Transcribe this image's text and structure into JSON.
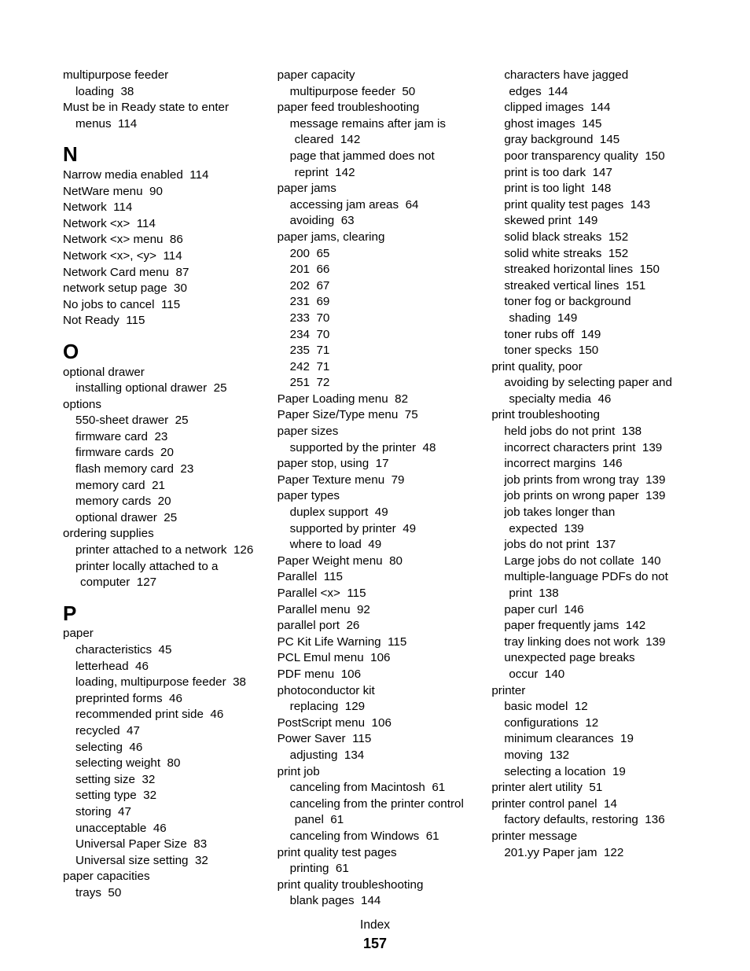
{
  "footer_label": "Index",
  "page_number": "157",
  "entries": [
    {
      "level": 0,
      "text": "multipurpose feeder"
    },
    {
      "level": 1,
      "text": "loading",
      "page": "38"
    },
    {
      "level": 0,
      "text": "Must be in Ready state to enter menus",
      "page": "114",
      "wrap": true
    },
    {
      "heading": "N"
    },
    {
      "level": 0,
      "text": "Narrow media enabled",
      "page": "114"
    },
    {
      "level": 0,
      "text": "NetWare menu",
      "page": "90"
    },
    {
      "level": 0,
      "text": "Network",
      "page": "114"
    },
    {
      "level": 0,
      "text": "Network <x>",
      "page": "114"
    },
    {
      "level": 0,
      "text": "Network <x> menu",
      "page": "86"
    },
    {
      "level": 0,
      "text": "Network <x>, <y>",
      "page": "114"
    },
    {
      "level": 0,
      "text": "Network Card menu",
      "page": "87"
    },
    {
      "level": 0,
      "text": "network setup page",
      "page": "30"
    },
    {
      "level": 0,
      "text": "No jobs to cancel",
      "page": "115"
    },
    {
      "level": 0,
      "text": "Not Ready",
      "page": "115"
    },
    {
      "heading": "O"
    },
    {
      "level": 0,
      "text": "optional drawer"
    },
    {
      "level": 1,
      "text": "installing optional drawer",
      "page": "25"
    },
    {
      "level": 0,
      "text": "options"
    },
    {
      "level": 1,
      "text": "550-sheet drawer",
      "page": "25"
    },
    {
      "level": 1,
      "text": "firmware card",
      "page": "23"
    },
    {
      "level": 1,
      "text": "firmware cards",
      "page": "20"
    },
    {
      "level": 1,
      "text": "flash memory card",
      "page": "23"
    },
    {
      "level": 1,
      "text": "memory card",
      "page": "21"
    },
    {
      "level": 1,
      "text": "memory cards",
      "page": "20"
    },
    {
      "level": 1,
      "text": "optional drawer",
      "page": "25"
    },
    {
      "level": 0,
      "text": "ordering supplies"
    },
    {
      "level": 1,
      "text": "printer attached to a network",
      "page": "126",
      "wrap": true
    },
    {
      "level": 1,
      "text": "printer locally attached to a computer",
      "page": "127",
      "wrap": true
    },
    {
      "heading": "P"
    },
    {
      "level": 0,
      "text": "paper"
    },
    {
      "level": 1,
      "text": "characteristics",
      "page": "45"
    },
    {
      "level": 1,
      "text": "letterhead",
      "page": "46"
    },
    {
      "level": 1,
      "text": "loading, multipurpose feeder",
      "page": "38"
    },
    {
      "level": 1,
      "text": "preprinted forms",
      "page": "46"
    },
    {
      "level": 1,
      "text": "recommended print side",
      "page": "46"
    },
    {
      "level": 1,
      "text": "recycled",
      "page": "47"
    },
    {
      "level": 1,
      "text": "selecting",
      "page": "46"
    },
    {
      "level": 1,
      "text": "selecting weight",
      "page": "80"
    },
    {
      "level": 1,
      "text": "setting size",
      "page": "32"
    },
    {
      "level": 1,
      "text": "setting type",
      "page": "32"
    },
    {
      "level": 1,
      "text": "storing",
      "page": "47"
    },
    {
      "level": 1,
      "text": "unacceptable",
      "page": "46"
    },
    {
      "level": 1,
      "text": "Universal Paper Size",
      "page": "83"
    },
    {
      "level": 1,
      "text": "Universal size setting",
      "page": "32"
    },
    {
      "level": 0,
      "text": "paper capacities"
    },
    {
      "level": 1,
      "text": "trays",
      "page": "50"
    },
    {
      "level": 0,
      "text": "paper capacity"
    },
    {
      "level": 1,
      "text": "multipurpose feeder",
      "page": "50"
    },
    {
      "level": 0,
      "text": "paper feed troubleshooting"
    },
    {
      "level": 1,
      "text": "message remains after jam is cleared",
      "page": "142",
      "wrap": true
    },
    {
      "level": 1,
      "text": "page that jammed does not reprint",
      "page": "142",
      "wrap": true
    },
    {
      "level": 0,
      "text": "paper jams"
    },
    {
      "level": 1,
      "text": "accessing jam areas",
      "page": "64"
    },
    {
      "level": 1,
      "text": "avoiding",
      "page": "63"
    },
    {
      "level": 0,
      "text": "paper jams, clearing"
    },
    {
      "level": 1,
      "text": "200",
      "page": "65"
    },
    {
      "level": 1,
      "text": "201",
      "page": "66"
    },
    {
      "level": 1,
      "text": "202",
      "page": "67"
    },
    {
      "level": 1,
      "text": "231",
      "page": "69"
    },
    {
      "level": 1,
      "text": "233",
      "page": "70"
    },
    {
      "level": 1,
      "text": "234",
      "page": "70"
    },
    {
      "level": 1,
      "text": "235",
      "page": "71"
    },
    {
      "level": 1,
      "text": "242",
      "page": "71"
    },
    {
      "level": 1,
      "text": "251",
      "page": "72"
    },
    {
      "level": 0,
      "text": "Paper Loading menu",
      "page": "82"
    },
    {
      "level": 0,
      "text": "Paper Size/Type menu",
      "page": "75"
    },
    {
      "level": 0,
      "text": "paper sizes"
    },
    {
      "level": 1,
      "text": "supported by the printer",
      "page": "48"
    },
    {
      "level": 0,
      "text": "paper stop, using",
      "page": "17"
    },
    {
      "level": 0,
      "text": "Paper Texture menu",
      "page": "79"
    },
    {
      "level": 0,
      "text": "paper types"
    },
    {
      "level": 1,
      "text": "duplex support",
      "page": "49"
    },
    {
      "level": 1,
      "text": "supported by printer",
      "page": "49"
    },
    {
      "level": 1,
      "text": "where to load",
      "page": "49"
    },
    {
      "level": 0,
      "text": "Paper Weight menu",
      "page": "80"
    },
    {
      "level": 0,
      "text": "Parallel",
      "page": "115"
    },
    {
      "level": 0,
      "text": "Parallel <x>",
      "page": "115"
    },
    {
      "level": 0,
      "text": "Parallel menu",
      "page": "92"
    },
    {
      "level": 0,
      "text": "parallel port",
      "page": "26"
    },
    {
      "level": 0,
      "text": "PC Kit Life Warning",
      "page": "115"
    },
    {
      "level": 0,
      "text": "PCL Emul menu",
      "page": "106"
    },
    {
      "level": 0,
      "text": "PDF menu",
      "page": "106"
    },
    {
      "level": 0,
      "text": "photoconductor kit"
    },
    {
      "level": 1,
      "text": "replacing",
      "page": "129"
    },
    {
      "level": 0,
      "text": "PostScript menu",
      "page": "106"
    },
    {
      "level": 0,
      "text": "Power Saver",
      "page": "115"
    },
    {
      "level": 1,
      "text": "adjusting",
      "page": "134"
    },
    {
      "level": 0,
      "text": "print job"
    },
    {
      "level": 1,
      "text": "canceling from Macintosh",
      "page": "61"
    },
    {
      "level": 1,
      "text": "canceling from the printer control panel",
      "page": "61",
      "wrap": true
    },
    {
      "level": 1,
      "text": "canceling from Windows",
      "page": "61"
    },
    {
      "level": 0,
      "text": "print quality test pages"
    },
    {
      "level": 1,
      "text": "printing",
      "page": "61"
    },
    {
      "level": 0,
      "text": "print quality troubleshooting"
    },
    {
      "level": 1,
      "text": "blank pages",
      "page": "144"
    },
    {
      "level": 1,
      "text": "characters have jagged edges",
      "page": "144",
      "wrap": true
    },
    {
      "level": 1,
      "text": "clipped images",
      "page": "144"
    },
    {
      "level": 1,
      "text": "ghost images",
      "page": "145"
    },
    {
      "level": 1,
      "text": "gray background",
      "page": "145"
    },
    {
      "level": 1,
      "text": "poor transparency quality",
      "page": "150"
    },
    {
      "level": 1,
      "text": "print is too dark",
      "page": "147"
    },
    {
      "level": 1,
      "text": "print is too light",
      "page": "148"
    },
    {
      "level": 1,
      "text": "print quality test pages",
      "page": "143"
    },
    {
      "level": 1,
      "text": "skewed print",
      "page": "149"
    },
    {
      "level": 1,
      "text": "solid black streaks",
      "page": "152"
    },
    {
      "level": 1,
      "text": "solid white streaks",
      "page": "152"
    },
    {
      "level": 1,
      "text": "streaked horizontal lines",
      "page": "150"
    },
    {
      "level": 1,
      "text": "streaked vertical lines",
      "page": "151"
    },
    {
      "level": 1,
      "text": "toner fog or background shading",
      "page": "149",
      "wrap": true
    },
    {
      "level": 1,
      "text": "toner rubs off",
      "page": "149"
    },
    {
      "level": 1,
      "text": "toner specks",
      "page": "150"
    },
    {
      "level": 0,
      "text": "print quality, poor"
    },
    {
      "level": 1,
      "text": "avoiding by selecting paper and specialty media",
      "page": "46",
      "wrap": true
    },
    {
      "level": 0,
      "text": "print troubleshooting"
    },
    {
      "level": 1,
      "text": "held jobs do not print",
      "page": "138"
    },
    {
      "level": 1,
      "text": "incorrect characters print",
      "page": "139"
    },
    {
      "level": 1,
      "text": "incorrect margins",
      "page": "146"
    },
    {
      "level": 1,
      "text": "job prints from wrong tray",
      "page": "139"
    },
    {
      "level": 1,
      "text": "job prints on wrong paper",
      "page": "139"
    },
    {
      "level": 1,
      "text": "job takes longer than expected",
      "page": "139",
      "wrap": true
    },
    {
      "level": 1,
      "text": "jobs do not print",
      "page": "137"
    },
    {
      "level": 1,
      "text": "Large jobs do not collate",
      "page": "140"
    },
    {
      "level": 1,
      "text": "multiple-language PDFs do not print",
      "page": "138",
      "wrap": true
    },
    {
      "level": 1,
      "text": "paper curl",
      "page": "146"
    },
    {
      "level": 1,
      "text": "paper frequently jams",
      "page": "142"
    },
    {
      "level": 1,
      "text": "tray linking does not work",
      "page": "139"
    },
    {
      "level": 1,
      "text": "unexpected page breaks occur",
      "page": "140",
      "wrap": true
    },
    {
      "level": 0,
      "text": "printer"
    },
    {
      "level": 1,
      "text": "basic model",
      "page": "12"
    },
    {
      "level": 1,
      "text": "configurations",
      "page": "12"
    },
    {
      "level": 1,
      "text": "minimum clearances",
      "page": "19"
    },
    {
      "level": 1,
      "text": "moving",
      "page": "132"
    },
    {
      "level": 1,
      "text": "selecting a location",
      "page": "19"
    },
    {
      "level": 0,
      "text": "printer alert utility",
      "page": "51"
    },
    {
      "level": 0,
      "text": "printer control panel",
      "page": "14"
    },
    {
      "level": 1,
      "text": "factory defaults, restoring",
      "page": "136"
    },
    {
      "level": 0,
      "text": "printer message"
    },
    {
      "level": 1,
      "text": "201.yy Paper jam",
      "page": "122"
    }
  ]
}
